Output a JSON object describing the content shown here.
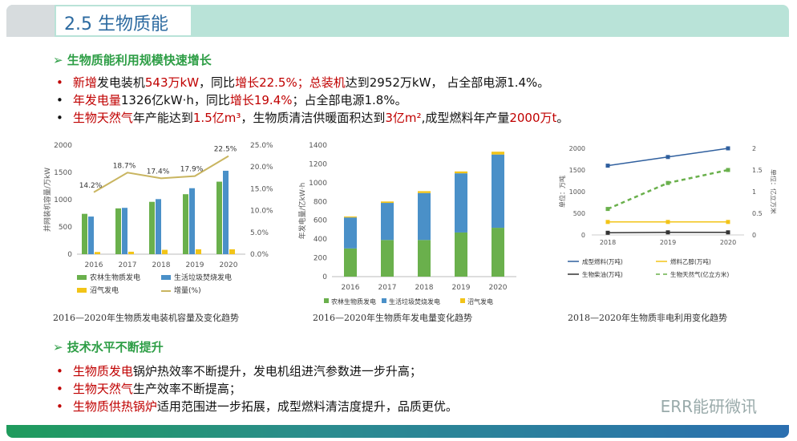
{
  "header": {
    "title": "2.5  生物质能"
  },
  "section1": {
    "heading": "➢ 生物质能利用规模快速增长",
    "bullets": [
      {
        "parts": [
          {
            "t": "新增",
            "c": "red"
          },
          {
            "t": "发电装机",
            "c": ""
          },
          {
            "t": "543万kW",
            "c": "red"
          },
          {
            "t": "，同比",
            "c": ""
          },
          {
            "t": "增长22.5%；",
            "c": "red"
          },
          {
            "t": "总装机",
            "c": "red"
          },
          {
            "t": "达到2952万kW， 占全部电源1.4%。",
            "c": ""
          }
        ]
      },
      {
        "parts": [
          {
            "t": "年发电量",
            "c": "red"
          },
          {
            "t": "1326亿kW·h，同比",
            "c": ""
          },
          {
            "t": "增长19.4%",
            "c": "red"
          },
          {
            "t": "；占全部电源1.8%。",
            "c": ""
          }
        ]
      },
      {
        "parts": [
          {
            "t": "生物天然气",
            "c": "red"
          },
          {
            "t": "年产能达到",
            "c": ""
          },
          {
            "t": "1.5亿m³",
            "c": "red"
          },
          {
            "t": "，生物质清洁供暖面积达到",
            "c": ""
          },
          {
            "t": "3亿m²",
            "c": "red"
          },
          {
            "t": ",成型燃料年产量",
            "c": ""
          },
          {
            "t": "2000万t",
            "c": "red"
          },
          {
            "t": "。",
            "c": ""
          }
        ]
      }
    ]
  },
  "section2": {
    "heading": "➢ 技术水平不断提升",
    "bullets": [
      {
        "parts": [
          {
            "t": "生物质发电",
            "c": "red"
          },
          {
            "t": "锅炉热效率不断提升，发电机组进汽参数进一步升高；",
            "c": ""
          }
        ]
      },
      {
        "parts": [
          {
            "t": "生物天然气",
            "c": "red"
          },
          {
            "t": "生产效率不断提高；",
            "c": ""
          }
        ]
      },
      {
        "parts": [
          {
            "t": "生物质供热锅炉",
            "c": "red"
          },
          {
            "t": "适用范围进一步拓展，成型燃料清洁度提升，品质更优。",
            "c": ""
          }
        ]
      }
    ]
  },
  "captions": {
    "c1": "2016—2020年生物质发电装机容量及变化趋势",
    "c2": "2016—2020年生物质年发电量变化趋势",
    "c3": "2018—2020年生物质非电利用变化趋势"
  },
  "watermark": "ERR能研微讯",
  "colors": {
    "green": "#6ab04c",
    "blue": "#4a90c8",
    "yellow": "#f2c418",
    "olive": "#c9b560"
  },
  "chart_data": [
    {
      "type": "bar",
      "categories": [
        "2016",
        "2017",
        "2018",
        "2019",
        "2020"
      ],
      "ylabel": "并网装机容量/万kW",
      "ylim": [
        0,
        2000
      ],
      "yticks": [
        "0",
        "500",
        "1000",
        "1500",
        "2000"
      ],
      "y2lim": [
        0,
        25
      ],
      "y2ticks": [
        "0.0%",
        "5.0%",
        "10.0%",
        "15.0%",
        "20.0%",
        "25.0%"
      ],
      "series": [
        {
          "name": "农林生物质发电",
          "values": [
            740,
            840,
            960,
            1100,
            1330
          ]
        },
        {
          "name": "生活垃圾焚烧发电",
          "values": [
            690,
            850,
            1010,
            1210,
            1530
          ]
        },
        {
          "name": "沼气发电",
          "values": [
            40,
            45,
            80,
            90,
            90
          ]
        },
        {
          "name": "增量(%)",
          "values": [
            14.2,
            18.7,
            17.4,
            17.9,
            22.5
          ],
          "labels": [
            "14.2%",
            "18.7%",
            "17.4%",
            "17.9%",
            "22.5%"
          ]
        }
      ]
    },
    {
      "type": "bar",
      "categories": [
        "2016",
        "2017",
        "2018",
        "2019",
        "2020"
      ],
      "ylabel": "年发电量/亿kW·h",
      "ylim": [
        0,
        1400
      ],
      "yticks": [
        "0",
        "200",
        "400",
        "600",
        "800",
        "1000",
        "1200",
        "1400"
      ],
      "series": [
        {
          "name": "农林生物质发电",
          "values": [
            300,
            390,
            390,
            470,
            520
          ]
        },
        {
          "name": "生活垃圾焚烧发电",
          "values": [
            330,
            395,
            500,
            630,
            780
          ]
        },
        {
          "name": "沼气发电",
          "values": [
            10,
            15,
            20,
            20,
            30
          ]
        }
      ]
    },
    {
      "type": "line",
      "categories": [
        "2018",
        "2019",
        "2020"
      ],
      "ylabel": "单位：万吨",
      "y2label": "单位：亿立方米",
      "ylim": [
        0,
        2000
      ],
      "yticks": [
        "0",
        "500",
        "1000",
        "1500",
        "2000"
      ],
      "y2lim": [
        0,
        2
      ],
      "y2ticks": [
        "0",
        "0.5",
        "1",
        "1.5",
        "2"
      ],
      "series": [
        {
          "name": "成型燃料(万吨)",
          "values": [
            1600,
            1800,
            2000
          ]
        },
        {
          "name": "燃料乙醇(万吨)",
          "values": [
            300,
            300,
            300
          ]
        },
        {
          "name": "生物柴油(万吨)",
          "values": [
            50,
            60,
            60
          ]
        },
        {
          "name": "生物天然气(亿立方米)",
          "values": [
            0.6,
            1.2,
            1.5
          ]
        }
      ]
    }
  ]
}
